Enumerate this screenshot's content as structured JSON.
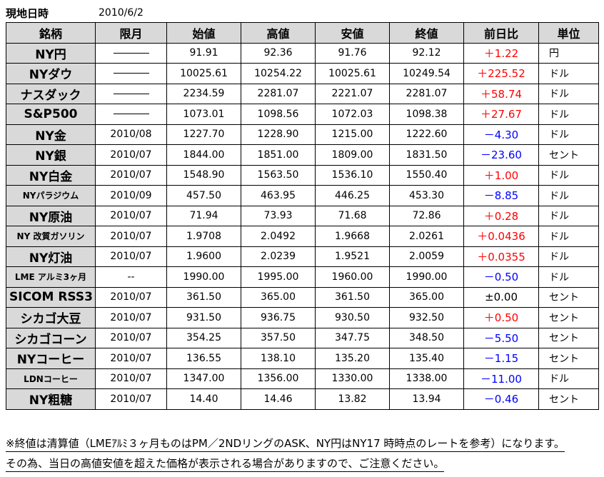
{
  "header": {
    "label": "現地日時",
    "date": "2010/6/2"
  },
  "columns": [
    "銘柄",
    "限月",
    "始値",
    "高値",
    "安値",
    "終値",
    "前日比",
    "単位"
  ],
  "rows": [
    {
      "name": "NY円",
      "month": "",
      "open": "91.91",
      "high": "92.36",
      "low": "91.76",
      "close": "92.12",
      "change": "＋1.22",
      "unit": "円",
      "sign": "pos",
      "small": false
    },
    {
      "name": "NYダウ",
      "month": "",
      "open": "10025.61",
      "high": "10254.22",
      "low": "10025.61",
      "close": "10249.54",
      "change": "＋225.52",
      "unit": "ドル",
      "sign": "pos",
      "small": false
    },
    {
      "name": "ナスダック",
      "month": "",
      "open": "2234.59",
      "high": "2281.07",
      "low": "2221.07",
      "close": "2281.07",
      "change": "＋58.74",
      "unit": "ドル",
      "sign": "pos",
      "small": false
    },
    {
      "name": "S&P500",
      "month": "",
      "open": "1073.01",
      "high": "1098.56",
      "low": "1072.03",
      "close": "1098.38",
      "change": "＋27.67",
      "unit": "ドル",
      "sign": "pos",
      "small": false
    },
    {
      "name": "NY金",
      "month": "2010/08",
      "open": "1227.70",
      "high": "1228.90",
      "low": "1215.00",
      "close": "1222.60",
      "change": "－4.30",
      "unit": "ドル",
      "sign": "neg",
      "small": false
    },
    {
      "name": "NY銀",
      "month": "2010/07",
      "open": "1844.00",
      "high": "1851.00",
      "low": "1809.00",
      "close": "1831.50",
      "change": "－23.60",
      "unit": "セント",
      "sign": "neg",
      "small": false
    },
    {
      "name": "NY白金",
      "month": "2010/07",
      "open": "1548.90",
      "high": "1563.50",
      "low": "1536.10",
      "close": "1550.40",
      "change": "＋1.00",
      "unit": "ドル",
      "sign": "pos",
      "small": false
    },
    {
      "name": "NYパラジウム",
      "month": "2010/09",
      "open": "457.50",
      "high": "463.95",
      "low": "446.25",
      "close": "453.30",
      "change": "－8.85",
      "unit": "ドル",
      "sign": "neg",
      "small": true
    },
    {
      "name": "NY原油",
      "month": "2010/07",
      "open": "71.94",
      "high": "73.93",
      "low": "71.68",
      "close": "72.86",
      "change": "＋0.28",
      "unit": "ドル",
      "sign": "pos",
      "small": false
    },
    {
      "name": "NY 改質ガソリン",
      "month": "2010/07",
      "open": "1.9708",
      "high": "2.0492",
      "low": "1.9668",
      "close": "2.0261",
      "change": "＋0.0436",
      "unit": "ドル",
      "sign": "pos",
      "small": true
    },
    {
      "name": "NY灯油",
      "month": "2010/07",
      "open": "1.9600",
      "high": "2.0239",
      "low": "1.9521",
      "close": "2.0059",
      "change": "＋0.0355",
      "unit": "ドル",
      "sign": "pos",
      "small": false
    },
    {
      "name": "LME アルミ3ヶ月",
      "month": "--",
      "open": "1990.00",
      "high": "1995.00",
      "low": "1960.00",
      "close": "1990.00",
      "change": "－0.50",
      "unit": "ドル",
      "sign": "neg",
      "small": true
    },
    {
      "name": "SICOM RSS3",
      "month": "2010/07",
      "open": "361.50",
      "high": "365.00",
      "low": "361.50",
      "close": "365.00",
      "change": "±0.00",
      "unit": "セント",
      "sign": "zero",
      "small": false
    },
    {
      "name": "シカゴ大豆",
      "month": "2010/07",
      "open": "931.50",
      "high": "936.75",
      "low": "930.50",
      "close": "932.50",
      "change": "＋0.50",
      "unit": "セント",
      "sign": "pos",
      "small": false
    },
    {
      "name": "シカゴコーン",
      "month": "2010/07",
      "open": "354.25",
      "high": "357.50",
      "low": "347.75",
      "close": "348.50",
      "change": "－5.50",
      "unit": "セント",
      "sign": "neg",
      "small": false
    },
    {
      "name": "NYコーヒー",
      "month": "2010/07",
      "open": "136.55",
      "high": "138.10",
      "low": "135.20",
      "close": "135.40",
      "change": "－1.15",
      "unit": "セント",
      "sign": "neg",
      "small": false
    },
    {
      "name": "LDNコーヒー",
      "month": "2010/07",
      "open": "1347.00",
      "high": "1356.00",
      "low": "1330.00",
      "close": "1338.00",
      "change": "－11.00",
      "unit": "ドル",
      "sign": "neg",
      "small": true
    },
    {
      "name": "NY粗糖",
      "month": "2010/07",
      "open": "14.40",
      "high": "14.46",
      "low": "13.82",
      "close": "13.94",
      "change": "－0.46",
      "unit": "セント",
      "sign": "neg",
      "small": false
    }
  ],
  "notes": [
    "※終値は清算値（LMEｱﾙﾐ３ヶ月ものはPM／2NDリングのASK、NY円はNY17 時時点のレートを参考）になります。",
    "その為、当日の高値安値を超えた価格が表示される場合がありますので、ご注意ください。"
  ]
}
